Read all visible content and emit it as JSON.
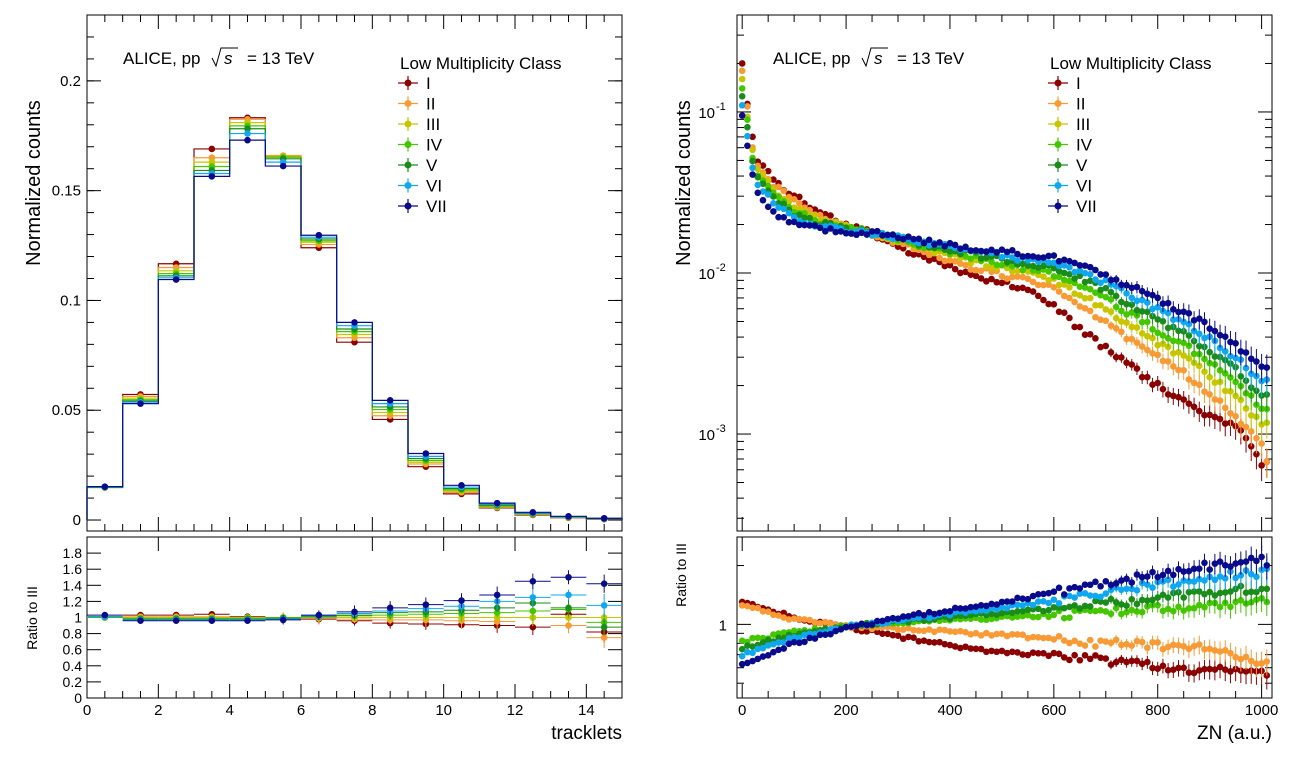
{
  "colors": {
    "series": [
      "#8b0000",
      "#f99a35",
      "#c9c500",
      "#45c700",
      "#1a8c1a",
      "#0fa8f0",
      "#0a0a8c"
    ],
    "frame": "#000000",
    "background": "#ffffff"
  },
  "chart_data": [
    {
      "type": "line",
      "panel": "top-left",
      "title": "",
      "annotation": "ALICE, pp",
      "annotation_energy": "= 13 TeV",
      "annotation_sqrt": "s",
      "ylabel": "Normalized counts",
      "xlabel": "",
      "legend_title": "Low Multiplicity Class",
      "legend_placement": "top-right",
      "xlim": [
        0,
        15
      ],
      "ylim": [
        -0.005,
        0.23
      ],
      "yticks": [
        0,
        0.05,
        0.1,
        0.15,
        0.2
      ],
      "ytick_labels": [
        "0",
        "0.05",
        "0.1",
        "0.15",
        "0.2"
      ],
      "style": "step histogram with points",
      "x": [
        0.5,
        1.5,
        2.5,
        3.5,
        4.5,
        5.5,
        6.5,
        7.5,
        8.5,
        9.5,
        10.5,
        11.5,
        12.5,
        13.5,
        14.5
      ],
      "series": [
        {
          "name": "I",
          "values": [
            0.015,
            0.0572,
            0.1167,
            0.169,
            0.1832,
            0.1655,
            0.124,
            0.081,
            0.0458,
            0.0243,
            0.0119,
            0.0055,
            0.0023,
            0.001,
            0.0004
          ]
        },
        {
          "name": "II",
          "values": [
            0.0149,
            0.0563,
            0.115,
            0.165,
            0.1825,
            0.166,
            0.1255,
            0.083,
            0.0475,
            0.0255,
            0.0126,
            0.0058,
            0.0025,
            0.0011,
            0.0005
          ]
        },
        {
          "name": "III",
          "values": [
            0.0148,
            0.0555,
            0.1135,
            0.163,
            0.181,
            0.1657,
            0.1265,
            0.0845,
            0.049,
            0.0263,
            0.0131,
            0.0061,
            0.0026,
            0.0012,
            0.0005
          ]
        },
        {
          "name": "IV",
          "values": [
            0.0148,
            0.0548,
            0.1122,
            0.161,
            0.1795,
            0.1652,
            0.1272,
            0.0858,
            0.0503,
            0.0271,
            0.0137,
            0.0064,
            0.0028,
            0.0013,
            0.0006
          ]
        },
        {
          "name": "V",
          "values": [
            0.0149,
            0.0542,
            0.1112,
            0.1592,
            0.1782,
            0.1645,
            0.128,
            0.087,
            0.0515,
            0.028,
            0.0143,
            0.0068,
            0.003,
            0.0014,
            0.0006
          ]
        },
        {
          "name": "VI",
          "values": [
            0.015,
            0.0537,
            0.1103,
            0.1578,
            0.176,
            0.163,
            0.1288,
            0.0885,
            0.053,
            0.029,
            0.015,
            0.0072,
            0.0032,
            0.0015,
            0.0007
          ]
        },
        {
          "name": "VII",
          "values": [
            0.0152,
            0.053,
            0.1095,
            0.1565,
            0.173,
            0.1612,
            0.1297,
            0.09,
            0.0545,
            0.0303,
            0.0158,
            0.0077,
            0.0035,
            0.0017,
            0.0008
          ]
        }
      ]
    },
    {
      "type": "scatter",
      "panel": "bottom-left",
      "title": "",
      "ylabel": "Ratio to III",
      "xlabel": "tracklets",
      "xlim": [
        0,
        15
      ],
      "ylim": [
        0,
        2.0
      ],
      "yticks": [
        0,
        0.2,
        0.4,
        0.6,
        0.8,
        1,
        1.2,
        1.4,
        1.6,
        1.8
      ],
      "ytick_labels": [
        "0",
        "0.2",
        "0.4",
        "0.6",
        "0.8",
        "1",
        "1.2",
        "1.4",
        "1.6",
        "1.8"
      ],
      "xticks": [
        0,
        2,
        4,
        6,
        8,
        10,
        12,
        14
      ],
      "xtick_labels": [
        "0",
        "2",
        "4",
        "6",
        "8",
        "10",
        "12",
        "14"
      ],
      "x": [
        0.5,
        1.5,
        2.5,
        3.5,
        4.5,
        5.5,
        6.5,
        7.5,
        8.5,
        9.5,
        10.5,
        11.5,
        12.5,
        13.5,
        14.5
      ],
      "series": [
        {
          "name": "I",
          "values": [
            1.01,
            1.03,
            1.03,
            1.04,
            1.01,
            1.0,
            0.98,
            0.96,
            0.93,
            0.92,
            0.91,
            0.9,
            0.88,
            1.04,
            0.82
          ]
        },
        {
          "name": "II",
          "values": [
            1.0,
            1.01,
            1.01,
            1.01,
            1.0,
            1.0,
            0.99,
            0.98,
            0.97,
            0.97,
            0.96,
            0.95,
            1.0,
            0.9,
            0.75
          ]
        },
        {
          "name": "III",
          "values": [
            1,
            1,
            1,
            1,
            1,
            1,
            1,
            1,
            1,
            1,
            1,
            1,
            1,
            1,
            1
          ]
        },
        {
          "name": "IV",
          "values": [
            1.0,
            0.99,
            0.99,
            0.99,
            0.99,
            1.0,
            1.01,
            1.02,
            1.03,
            1.04,
            1.05,
            1.06,
            1.08,
            1.1,
            0.94
          ]
        },
        {
          "name": "V",
          "values": [
            1.01,
            0.98,
            0.98,
            0.98,
            0.98,
            0.99,
            1.01,
            1.03,
            1.06,
            1.07,
            1.09,
            1.12,
            1.18,
            1.12,
            0.88
          ]
        },
        {
          "name": "VI",
          "values": [
            1.01,
            0.97,
            0.97,
            0.97,
            0.97,
            0.98,
            1.02,
            1.05,
            1.08,
            1.11,
            1.14,
            1.2,
            1.25,
            1.28,
            1.15
          ]
        },
        {
          "name": "VII",
          "values": [
            1.03,
            0.96,
            0.96,
            0.96,
            0.96,
            0.97,
            1.03,
            1.07,
            1.12,
            1.16,
            1.21,
            1.28,
            1.45,
            1.5,
            1.42
          ]
        }
      ]
    },
    {
      "type": "scatter",
      "panel": "top-right",
      "title": "",
      "annotation": "ALICE, pp",
      "annotation_energy": "= 13 TeV",
      "annotation_sqrt": "s",
      "ylabel": "Normalized counts",
      "xlabel": "",
      "legend_title": "Low Multiplicity Class",
      "legend_placement": "top-right",
      "log_y": true,
      "xlim": [
        -10,
        1020
      ],
      "ylim": [
        0.00025,
        0.4
      ],
      "ytick_labels": [
        {
          "base": "10",
          "exp": "-1",
          "value": 0.1
        },
        {
          "base": "10",
          "exp": "-2",
          "value": 0.01
        },
        {
          "base": "10",
          "exp": "-3",
          "value": 0.001
        }
      ],
      "x_range_points": [
        0,
        1010
      ],
      "x_step": 10,
      "first_point_values": [
        0.2,
        0.18,
        0.16,
        0.14,
        0.125,
        0.11,
        0.095
      ],
      "anchor_x": [
        0,
        25,
        60,
        100,
        150,
        200,
        250,
        300,
        350,
        400,
        450,
        500,
        550,
        600,
        650,
        700,
        750,
        800,
        850,
        900,
        950,
        1000,
        1010
      ],
      "series": [
        {
          "name": "I",
          "anchor_values": [
            0.2,
            0.052,
            0.038,
            0.03,
            0.024,
            0.02,
            0.0175,
            0.0145,
            0.0125,
            0.011,
            0.0095,
            0.0088,
            0.0078,
            0.0062,
            0.0045,
            0.0034,
            0.0026,
            0.002,
            0.0016,
            0.0013,
            0.00115,
            0.00065,
            0.0007
          ]
        },
        {
          "name": "II",
          "anchor_values": [
            0.18,
            0.048,
            0.035,
            0.028,
            0.0225,
            0.0195,
            0.0175,
            0.0155,
            0.0135,
            0.012,
            0.0107,
            0.0097,
            0.009,
            0.008,
            0.0062,
            0.0049,
            0.0038,
            0.003,
            0.0024,
            0.0018,
            0.0013,
            0.00085,
            0.0007
          ]
        },
        {
          "name": "III",
          "anchor_values": [
            0.16,
            0.045,
            0.033,
            0.026,
            0.0215,
            0.0192,
            0.0177,
            0.016,
            0.0142,
            0.0128,
            0.0117,
            0.0108,
            0.0099,
            0.009,
            0.0074,
            0.006,
            0.0047,
            0.0037,
            0.003,
            0.0023,
            0.0017,
            0.00115,
            0.0012
          ]
        },
        {
          "name": "IV",
          "anchor_values": [
            0.14,
            0.042,
            0.031,
            0.0245,
            0.0208,
            0.019,
            0.0178,
            0.0163,
            0.0147,
            0.0134,
            0.0124,
            0.0115,
            0.0107,
            0.0099,
            0.0084,
            0.0069,
            0.0055,
            0.0044,
            0.0036,
            0.0028,
            0.0021,
            0.00145,
            0.00145
          ]
        },
        {
          "name": "V",
          "anchor_values": [
            0.125,
            0.04,
            0.029,
            0.0232,
            0.0203,
            0.0187,
            0.0178,
            0.0165,
            0.0151,
            0.0139,
            0.013,
            0.0122,
            0.0114,
            0.0107,
            0.0093,
            0.0078,
            0.0063,
            0.0051,
            0.0042,
            0.0033,
            0.0025,
            0.0017,
            0.0017
          ]
        },
        {
          "name": "VI",
          "anchor_values": [
            0.11,
            0.037,
            0.027,
            0.022,
            0.0198,
            0.0185,
            0.0178,
            0.0167,
            0.0155,
            0.0144,
            0.0136,
            0.0129,
            0.0121,
            0.0115,
            0.0102,
            0.0087,
            0.0072,
            0.0059,
            0.0049,
            0.0039,
            0.003,
            0.0021,
            0.0021
          ]
        },
        {
          "name": "VII",
          "anchor_values": [
            0.095,
            0.032,
            0.024,
            0.0205,
            0.019,
            0.0182,
            0.0177,
            0.0168,
            0.0158,
            0.0149,
            0.0142,
            0.0136,
            0.013,
            0.0125,
            0.0112,
            0.0097,
            0.0082,
            0.0068,
            0.0057,
            0.0046,
            0.0036,
            0.0026,
            0.0026
          ]
        }
      ]
    },
    {
      "type": "scatter",
      "panel": "bottom-right",
      "title": "",
      "ylabel": "Ratio to III",
      "xlabel": "ZN (a.u.)",
      "log_y": true,
      "xlim": [
        -10,
        1020
      ],
      "ylim": [
        0.42,
        2.8
      ],
      "yticks": [
        1
      ],
      "ytick_labels": [
        "1"
      ],
      "xticks": [
        0,
        200,
        400,
        600,
        800,
        1000
      ],
      "xtick_labels": [
        "0",
        "200",
        "400",
        "600",
        "800",
        "1000"
      ],
      "anchor_x": [
        0,
        100,
        200,
        300,
        400,
        500,
        600,
        700,
        800,
        900,
        1000,
        1010
      ],
      "series": [
        {
          "name": "I",
          "anchor_values": [
            1.32,
            1.08,
            0.97,
            0.87,
            0.78,
            0.72,
            0.7,
            0.66,
            0.6,
            0.58,
            0.57,
            0.57
          ]
        },
        {
          "name": "II",
          "anchor_values": [
            1.25,
            1.06,
            0.98,
            0.95,
            0.92,
            0.88,
            0.85,
            0.8,
            0.78,
            0.75,
            0.65,
            0.65
          ]
        },
        {
          "name": "IV",
          "anchor_values": [
            0.82,
            0.91,
            0.98,
            1.02,
            1.05,
            1.08,
            1.12,
            1.15,
            1.2,
            1.25,
            1.3,
            1.3
          ]
        },
        {
          "name": "V",
          "anchor_values": [
            0.76,
            0.88,
            0.97,
            1.04,
            1.09,
            1.14,
            1.2,
            1.28,
            1.36,
            1.45,
            1.55,
            1.55
          ]
        },
        {
          "name": "VI",
          "anchor_values": [
            0.7,
            0.85,
            0.97,
            1.05,
            1.13,
            1.22,
            1.32,
            1.45,
            1.6,
            1.75,
            1.85,
            1.85
          ]
        },
        {
          "name": "VII",
          "anchor_values": [
            0.62,
            0.8,
            0.96,
            1.08,
            1.18,
            1.3,
            1.45,
            1.62,
            1.8,
            2.0,
            2.2,
            2.1
          ]
        }
      ]
    }
  ]
}
